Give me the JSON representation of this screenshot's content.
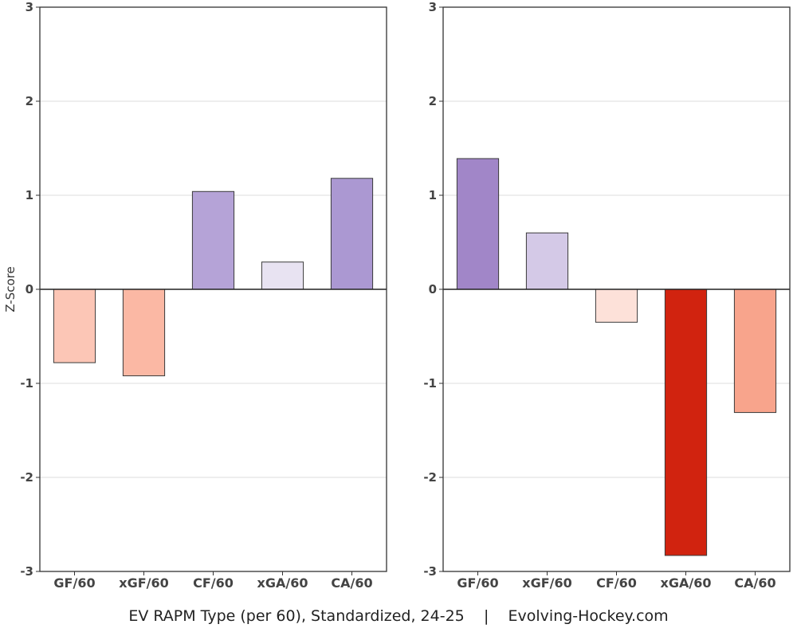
{
  "chart_data": [
    {
      "type": "bar",
      "title": "",
      "xlabel": "",
      "ylabel": "Z-Score",
      "ylim": [
        -3,
        3
      ],
      "yticks": [
        -3,
        -2,
        -1,
        0,
        1,
        2,
        3
      ],
      "categories": [
        "GF/60",
        "xGF/60",
        "CF/60",
        "xGA/60",
        "CA/60"
      ],
      "values": [
        -0.78,
        -0.92,
        1.04,
        0.29,
        1.18
      ],
      "colors": [
        "#fcc6b6",
        "#fbb8a4",
        "#b5a3d7",
        "#e8e3f2",
        "#ab98d2"
      ]
    },
    {
      "type": "bar",
      "title": "",
      "xlabel": "",
      "ylabel": "",
      "ylim": [
        -3,
        3
      ],
      "yticks": [
        -3,
        -2,
        -1,
        0,
        1,
        2,
        3
      ],
      "categories": [
        "GF/60",
        "xGF/60",
        "CF/60",
        "xGA/60",
        "CA/60"
      ],
      "values": [
        1.39,
        0.6,
        -0.35,
        -2.83,
        -1.31
      ],
      "colors": [
        "#a186c8",
        "#d4c9e7",
        "#fde1d9",
        "#d1230f",
        "#f8a48c"
      ]
    }
  ],
  "footer": {
    "left": "EV RAPM Type (per 60), Standardized, 24-25",
    "separator": "|",
    "right": "Evolving-Hockey.com"
  }
}
